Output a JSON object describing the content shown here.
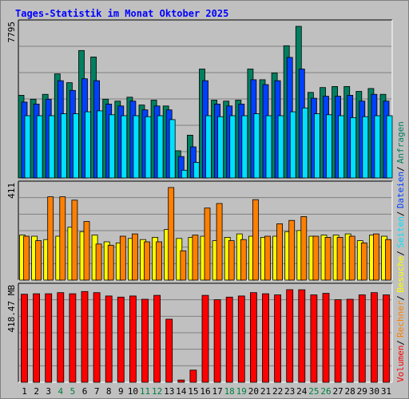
{
  "chart_data": {
    "title": "Tages-Statistik im Monat Oktober 2025",
    "days": [
      "1",
      "2",
      "3",
      "4",
      "5",
      "6",
      "7",
      "8",
      "9",
      "10",
      "11",
      "12",
      "13",
      "14",
      "15",
      "16",
      "17",
      "18",
      "19",
      "20",
      "21",
      "22",
      "23",
      "24",
      "25",
      "26",
      "27",
      "28",
      "29",
      "30",
      "31"
    ],
    "weekend_days": [
      "4",
      "5",
      "11",
      "12",
      "18",
      "19",
      "25",
      "26"
    ],
    "colors": {
      "title": "#0000ff",
      "weekend": "#008040",
      "anfragen": "#008060",
      "dateien": "#0040ff",
      "seiten": "#00e0ff",
      "besuche": "#ffff00",
      "rechner": "#ff8000",
      "volumen": "#ff0000"
    },
    "panels": [
      {
        "type": "bar",
        "axis_max_label": "7795",
        "ymax": 7795,
        "series": [
          {
            "name": "Anfragen",
            "values": [
              4250,
              4050,
              4300,
              5350,
              4900,
              6550,
              6220,
              4050,
              3950,
              4150,
              3750,
              4000,
              3700,
              1400,
              2200,
              5600,
              4000,
              3950,
              4000,
              5600,
              5050,
              5400,
              6800,
              7795,
              4400,
              4650,
              4700,
              4700,
              4450,
              4600,
              4300
            ]
          },
          {
            "name": "Dateien",
            "values": [
              3900,
              3800,
              4050,
              5000,
              4500,
              5100,
              5000,
              3800,
              3700,
              3950,
              3500,
              3700,
              3500,
              1100,
              1600,
              5000,
              3800,
              3700,
              3800,
              5050,
              4800,
              5000,
              6200,
              5600,
              4100,
              4200,
              4200,
              4250,
              3950,
              4300,
              3950
            ]
          },
          {
            "name": "Seiten",
            "values": [
              3200,
              3200,
              3200,
              3300,
              3300,
              3400,
              3450,
              3250,
              3200,
              3200,
              3150,
              3200,
              3000,
              400,
              800,
              3200,
              3150,
              3200,
              3200,
              3300,
              3200,
              3200,
              3400,
              3600,
              3300,
              3250,
              3200,
              3100,
              3150,
              3200,
              3200
            ]
          }
        ]
      },
      {
        "type": "bar",
        "axis_max_label": "411",
        "ymax": 411,
        "series": [
          {
            "name": "Besuche",
            "values": [
              200,
              195,
              180,
              195,
              235,
              215,
              200,
              170,
              165,
              185,
              180,
              190,
              225,
              185,
              190,
              195,
              175,
              190,
              205,
              195,
              190,
              195,
              215,
              220,
              195,
              200,
              200,
              205,
              175,
              200,
              195
            ]
          },
          {
            "name": "Rechner",
            "values": [
              195,
              175,
              370,
              370,
              355,
              260,
              160,
              155,
              195,
              205,
              170,
              170,
              411,
              130,
              200,
              320,
              340,
              175,
              180,
              357,
              195,
              250,
              265,
              282,
              195,
              190,
              190,
              195,
              165,
              205,
              180
            ]
          }
        ]
      },
      {
        "type": "bar",
        "axis_max_label": "418.47 MB",
        "ymax": 418.47,
        "series": [
          {
            "name": "Volumen",
            "values": [
              398,
              400,
              400,
              405,
              400,
              410,
              405,
              390,
              385,
              390,
              375,
              393,
              285,
              10,
              55,
              393,
              373,
              385,
              390,
              405,
              400,
              395,
              418.47,
              418,
              395,
              402,
              373,
              375,
              395,
              405,
              395
            ]
          }
        ]
      }
    ],
    "legend_right": [
      {
        "name": "Anfragen",
        "color": "#008060"
      },
      {
        "name": "Dateien",
        "color": "#0040ff"
      },
      {
        "name": "Seiten",
        "color": "#00e0ff"
      },
      {
        "name": "Besuche",
        "color": "#ffff00"
      },
      {
        "name": "Rechner",
        "color": "#ff8000"
      },
      {
        "name": "Volumen",
        "color": "#ff0000"
      }
    ],
    "legend_separator": " / "
  }
}
